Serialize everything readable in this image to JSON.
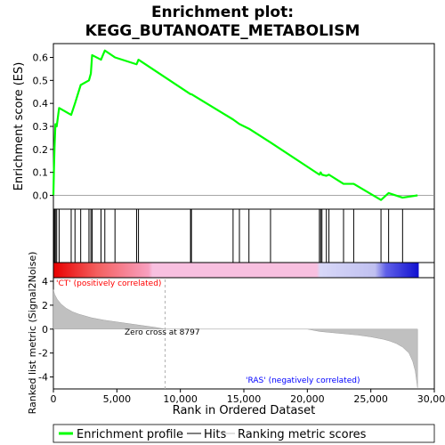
{
  "chart_data": {
    "type": "line",
    "title_line1": "Enrichment plot:",
    "title_line2": "KEGG_BUTANOATE_METABOLISM",
    "xlabel": "Rank in Ordered Dataset",
    "ylabel_top": "Enrichment score (ES)",
    "ylabel_bottom": "Ranked list metric (Signal2Noise)",
    "xlim": [
      0,
      30000
    ],
    "x_ticks": [
      0,
      5000,
      10000,
      15000,
      20000,
      25000,
      30000
    ],
    "x_tick_labels": [
      "0",
      "5,000",
      "10,000",
      "15,000",
      "20,000",
      "25,000",
      "30,000"
    ],
    "es_ylim": [
      -0.06,
      0.66
    ],
    "es_ticks": [
      0.0,
      0.1,
      0.2,
      0.3,
      0.4,
      0.5,
      0.6
    ],
    "es_tick_labels": [
      "0.0",
      "0.1",
      "0.2",
      "0.3",
      "0.4",
      "0.5",
      "0.6"
    ],
    "metric_ylim": [
      -5,
      4.3
    ],
    "metric_ticks": [
      4,
      2,
      0,
      -2,
      -4
    ],
    "metric_tick_labels": [
      "4",
      "2",
      "0",
      "-2",
      "-4"
    ],
    "n_genes": 28680,
    "zero_cross": 8797,
    "zero_cross_label": "Zero cross at 8797",
    "pos_label": "'CT' (positively correlated)",
    "neg_label": "'RAS' (negatively correlated)",
    "hits": [
      40,
      90,
      160,
      260,
      450,
      1400,
      1700,
      2150,
      2800,
      2950,
      3050,
      3750,
      4050,
      4850,
      6550,
      6700,
      10800,
      10870,
      14150,
      14650,
      15400,
      17100,
      20950,
      21050,
      21150,
      21500,
      21700,
      22850,
      23650,
      25800,
      26400,
      27500
    ],
    "es_profile": {
      "x": [
        0,
        40,
        90,
        160,
        260,
        450,
        1400,
        1700,
        2150,
        2800,
        2950,
        3050,
        3750,
        4050,
        4850,
        6550,
        6700,
        10800,
        10870,
        14150,
        14650,
        15400,
        17100,
        20950,
        21050,
        21150,
        21500,
        21700,
        22850,
        23650,
        25800,
        26400,
        27500,
        28680
      ],
      "y": [
        0.0,
        0.11,
        0.21,
        0.31,
        0.3,
        0.38,
        0.35,
        0.4,
        0.48,
        0.5,
        0.53,
        0.61,
        0.59,
        0.63,
        0.6,
        0.57,
        0.59,
        0.44,
        0.44,
        0.33,
        0.31,
        0.29,
        0.23,
        0.09,
        0.1,
        0.09,
        0.085,
        0.09,
        0.05,
        0.05,
        -0.02,
        0.01,
        -0.01,
        0.0
      ]
    },
    "metric_curve": {
      "x": [
        0,
        100,
        300,
        600,
        1000,
        1500,
        2000,
        3000,
        4000,
        5000,
        6000,
        7000,
        8000,
        8797,
        10000,
        15000,
        20000,
        21000,
        22000,
        23000,
        24000,
        25000,
        26000,
        26500,
        27000,
        27500,
        28000,
        28300,
        28500,
        28680
      ],
      "y": [
        3.3,
        2.9,
        2.5,
        2.1,
        1.75,
        1.45,
        1.25,
        0.95,
        0.75,
        0.6,
        0.45,
        0.3,
        0.15,
        0.0,
        0.0,
        0.0,
        0.0,
        -0.2,
        -0.3,
        -0.4,
        -0.5,
        -0.65,
        -0.85,
        -1.0,
        -1.2,
        -1.5,
        -2.0,
        -2.7,
        -3.5,
        -4.9
      ]
    },
    "legend": [
      {
        "label": "Enrichment profile",
        "color": "#00ff00"
      },
      {
        "label": "Hits",
        "color": "#000000"
      },
      {
        "label": "Ranking metric scores",
        "color": "#c0c0c0"
      }
    ],
    "colors": {
      "es_line": "#00ff00",
      "hits": "#000000",
      "metric_fill": "#c0c0c0",
      "pos_text": "#ff0000",
      "neg_text": "#0000ff"
    }
  }
}
